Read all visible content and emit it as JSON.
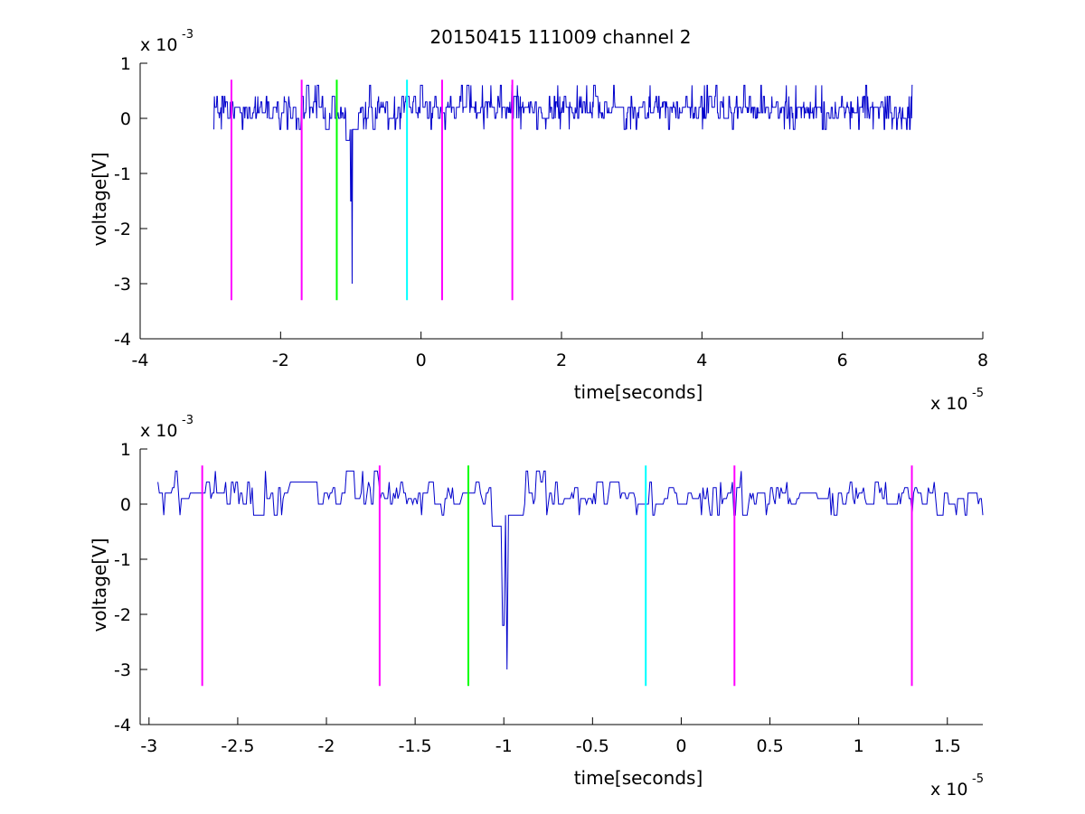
{
  "figure": {
    "title": "20150415 111009 channel 2",
    "background": "#ffffff"
  },
  "colors": {
    "signal": "#0000cc",
    "magenta": "#ff00ff",
    "green": "#00ff00",
    "cyan": "#00ffff",
    "axes": "#000000"
  },
  "chart_data": [
    {
      "type": "line",
      "title": "20150415 111009 channel 2",
      "xlabel": "time[seconds]",
      "ylabel": "voltage[V]",
      "x_multiplier_label": "x 10",
      "x_multiplier_exp": "-5",
      "y_multiplier_label": "x 10",
      "y_multiplier_exp": "-3",
      "xlim": [
        -4,
        8
      ],
      "ylim": [
        -4,
        1
      ],
      "xticks": [
        -4,
        -2,
        0,
        2,
        4,
        6,
        8
      ],
      "xtick_labels": [
        "-4",
        "-2",
        "0",
        "2",
        "4",
        "6",
        "8"
      ],
      "yticks": [
        -4,
        -3,
        -2,
        -1,
        0,
        1
      ],
      "ytick_labels": [
        "-4",
        "-3",
        "-2",
        "-1",
        "0",
        "1"
      ],
      "grid": false,
      "series": [
        {
          "x_range": [
            -2.95,
            7.0
          ],
          "baseline": 0.1,
          "noise_band": [
            -0.2,
            0.4
          ],
          "spike": {
            "x": -0.98,
            "y": -3.0,
            "second_dip_y": -1.5
          },
          "color": "#0000cc"
        }
      ],
      "vertical_markers": [
        {
          "x": -2.7,
          "y_top": 0.7,
          "y_bottom": -3.3,
          "color": "#ff00ff"
        },
        {
          "x": -1.7,
          "y_top": 0.7,
          "y_bottom": -3.3,
          "color": "#ff00ff"
        },
        {
          "x": -1.2,
          "y_top": 0.7,
          "y_bottom": -3.3,
          "color": "#00ff00"
        },
        {
          "x": -0.2,
          "y_top": 0.7,
          "y_bottom": -3.3,
          "color": "#00ffff"
        },
        {
          "x": 0.3,
          "y_top": 0.7,
          "y_bottom": -3.3,
          "color": "#ff00ff"
        },
        {
          "x": 1.3,
          "y_top": 0.7,
          "y_bottom": -3.3,
          "color": "#ff00ff"
        }
      ]
    },
    {
      "type": "line",
      "xlabel": "time[seconds]",
      "ylabel": "voltage[V]",
      "x_multiplier_label": "x 10",
      "x_multiplier_exp": "-5",
      "y_multiplier_label": "x 10",
      "y_multiplier_exp": "-3",
      "xlim": [
        -3.05,
        1.7
      ],
      "ylim": [
        -4,
        1
      ],
      "xticks": [
        -3,
        -2.5,
        -2,
        -1.5,
        -1,
        -0.5,
        0,
        0.5,
        1,
        1.5
      ],
      "xtick_labels": [
        "-3",
        "-2.5",
        "-2",
        "-1.5",
        "-1",
        "-0.5",
        "0",
        "0.5",
        "1",
        "1.5"
      ],
      "yticks": [
        -4,
        -3,
        -2,
        -1,
        0,
        1
      ],
      "ytick_labels": [
        "-4",
        "-3",
        "-2",
        "-1",
        "0",
        "1"
      ],
      "grid": false,
      "series": [
        {
          "x_range": [
            -2.95,
            1.7
          ],
          "baseline": 0.1,
          "noise_band": [
            -0.2,
            0.4
          ],
          "spike": {
            "x": -0.98,
            "y": -3.0,
            "second_dip_y": -2.2
          },
          "color": "#0000cc"
        }
      ],
      "vertical_markers": [
        {
          "x": -2.7,
          "y_top": 0.7,
          "y_bottom": -3.3,
          "color": "#ff00ff"
        },
        {
          "x": -1.7,
          "y_top": 0.7,
          "y_bottom": -3.3,
          "color": "#ff00ff"
        },
        {
          "x": -1.2,
          "y_top": 0.7,
          "y_bottom": -3.3,
          "color": "#00ff00"
        },
        {
          "x": -0.2,
          "y_top": 0.7,
          "y_bottom": -3.3,
          "color": "#00ffff"
        },
        {
          "x": 0.3,
          "y_top": 0.7,
          "y_bottom": -3.3,
          "color": "#ff00ff"
        },
        {
          "x": 1.3,
          "y_top": 0.7,
          "y_bottom": -3.3,
          "color": "#ff00ff"
        }
      ]
    }
  ]
}
